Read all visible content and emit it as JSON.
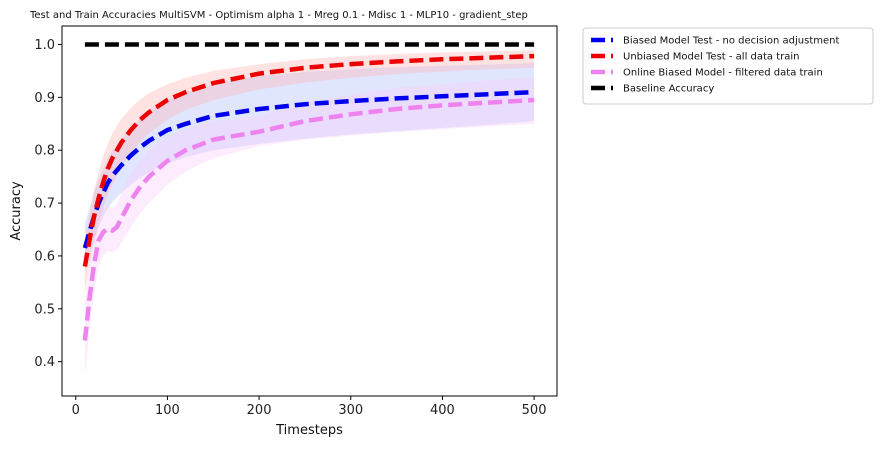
{
  "chart_data": {
    "type": "line",
    "title": "Test and Train Accuracies MultiSVM - Optimism alpha 1 - Mreg 0.1 - Mdisc 1 - MLP10 - gradient_step",
    "xlabel": "Timesteps",
    "ylabel": "Accuracy",
    "xlim": [
      -15,
      525
    ],
    "ylim": [
      0.335,
      1.035
    ],
    "x_ticks": [
      0,
      100,
      200,
      300,
      400,
      500
    ],
    "y_ticks": [
      0.4,
      0.5,
      0.6,
      0.7,
      0.8,
      0.9,
      1.0
    ],
    "grid": false,
    "legend_position": "outside-top-right",
    "series": [
      {
        "name": "Biased Model Test - no decision adjustment",
        "color": "#0000ee",
        "band_color": "#aab8ff",
        "x": [
          10,
          15,
          20,
          25,
          30,
          35,
          40,
          50,
          60,
          70,
          80,
          100,
          120,
          150,
          200,
          250,
          300,
          350,
          400,
          450,
          500
        ],
        "y": [
          0.615,
          0.645,
          0.675,
          0.7,
          0.72,
          0.738,
          0.752,
          0.772,
          0.79,
          0.805,
          0.818,
          0.838,
          0.85,
          0.865,
          0.878,
          0.887,
          0.893,
          0.898,
          0.902,
          0.906,
          0.91
        ],
        "lower": [
          0.57,
          0.6,
          0.63,
          0.655,
          0.675,
          0.69,
          0.702,
          0.72,
          0.735,
          0.748,
          0.758,
          0.775,
          0.787,
          0.8,
          0.812,
          0.822,
          0.83,
          0.836,
          0.842,
          0.848,
          0.855
        ],
        "upper": [
          0.66,
          0.69,
          0.72,
          0.745,
          0.765,
          0.785,
          0.8,
          0.822,
          0.842,
          0.86,
          0.874,
          0.895,
          0.91,
          0.925,
          0.94,
          0.948,
          0.953,
          0.957,
          0.96,
          0.962,
          0.965
        ]
      },
      {
        "name": "Unbiased Model Test - all data train",
        "color": "#ee0000",
        "band_color": "#ffb0b0",
        "x": [
          10,
          15,
          20,
          25,
          30,
          35,
          40,
          50,
          60,
          70,
          80,
          100,
          120,
          150,
          200,
          250,
          300,
          350,
          400,
          450,
          500
        ],
        "y": [
          0.58,
          0.63,
          0.675,
          0.71,
          0.74,
          0.765,
          0.785,
          0.815,
          0.838,
          0.857,
          0.872,
          0.895,
          0.91,
          0.927,
          0.945,
          0.956,
          0.963,
          0.968,
          0.972,
          0.975,
          0.978
        ],
        "lower": [
          0.53,
          0.58,
          0.625,
          0.66,
          0.69,
          0.715,
          0.735,
          0.77,
          0.795,
          0.815,
          0.832,
          0.858,
          0.876,
          0.895,
          0.915,
          0.928,
          0.937,
          0.944,
          0.949,
          0.953,
          0.956
        ],
        "upper": [
          0.63,
          0.68,
          0.725,
          0.76,
          0.79,
          0.812,
          0.832,
          0.86,
          0.88,
          0.896,
          0.908,
          0.925,
          0.937,
          0.95,
          0.963,
          0.972,
          0.978,
          0.982,
          0.985,
          0.987,
          0.989
        ]
      },
      {
        "name": "Online Biased Model - filtered data train",
        "color": "#ee82ee",
        "band_color": "#f8c8f8",
        "x": [
          10,
          15,
          20,
          25,
          30,
          35,
          40,
          45,
          50,
          60,
          70,
          80,
          100,
          120,
          150,
          200,
          250,
          300,
          350,
          400,
          450,
          500
        ],
        "y": [
          0.44,
          0.52,
          0.585,
          0.63,
          0.645,
          0.652,
          0.648,
          0.655,
          0.672,
          0.705,
          0.73,
          0.75,
          0.78,
          0.8,
          0.82,
          0.835,
          0.855,
          0.868,
          0.878,
          0.885,
          0.89,
          0.895
        ],
        "lower": [
          0.37,
          0.46,
          0.53,
          0.58,
          0.6,
          0.61,
          0.607,
          0.612,
          0.625,
          0.655,
          0.68,
          0.7,
          0.735,
          0.76,
          0.785,
          0.808,
          0.82,
          0.828,
          0.835,
          0.84,
          0.845,
          0.85
        ],
        "upper": [
          0.51,
          0.58,
          0.64,
          0.68,
          0.69,
          0.695,
          0.69,
          0.698,
          0.72,
          0.755,
          0.78,
          0.8,
          0.825,
          0.84,
          0.855,
          0.865,
          0.89,
          0.905,
          0.918,
          0.925,
          0.932,
          0.938
        ]
      },
      {
        "name": "Baseline Accuracy",
        "color": "#000000",
        "x": [
          10,
          500
        ],
        "y": [
          1.0,
          1.0
        ]
      }
    ]
  }
}
